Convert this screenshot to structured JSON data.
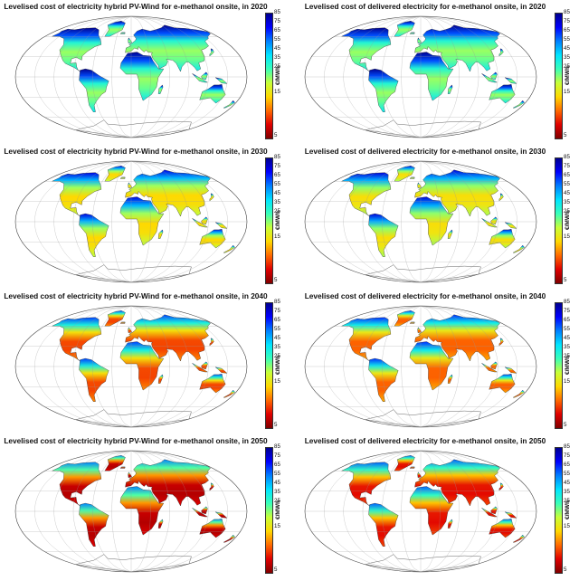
{
  "colorbar": {
    "unit": "€/MWh",
    "ticks": [
      85,
      75,
      65,
      55,
      45,
      35,
      25,
      15,
      5
    ],
    "colors": [
      "#00008f",
      "#0000ff",
      "#0080ff",
      "#00e5ff",
      "#39ffb8",
      "#c8ff38",
      "#ffd800",
      "#ff6a00",
      "#e00000",
      "#800000"
    ]
  },
  "ocean_color": "#ffffff",
  "panels": [
    {
      "title": "Levelised cost of electricity hybrid PV-Wind for e-methanol onsite, in 2020",
      "year": 2020,
      "level": 0.0
    },
    {
      "title": "Levelised cost of delivered electricity for e-methanol onsite, in 2020",
      "year": 2020,
      "level": 0.0
    },
    {
      "title": "Levelised cost of electricity hybrid PV-Wind for e-methanol onsite, in 2030",
      "year": 2030,
      "level": 0.33
    },
    {
      "title": "Levelised cost of delivered electricity for e-methanol onsite, in 2030",
      "year": 2030,
      "level": 0.3
    },
    {
      "title": "Levelised cost of electricity hybrid PV-Wind for e-methanol onsite, in 2040",
      "year": 2040,
      "level": 0.66
    },
    {
      "title": "Levelised cost of delivered electricity for e-methanol onsite, in 2040",
      "year": 2040,
      "level": 0.6
    },
    {
      "title": "Levelised cost of electricity hybrid PV-Wind for e-methanol onsite, in 2050",
      "year": 2050,
      "level": 0.9
    },
    {
      "title": "Levelised cost of delivered electricity for e-methanol onsite, in 2050",
      "year": 2050,
      "level": 0.78
    }
  ]
}
